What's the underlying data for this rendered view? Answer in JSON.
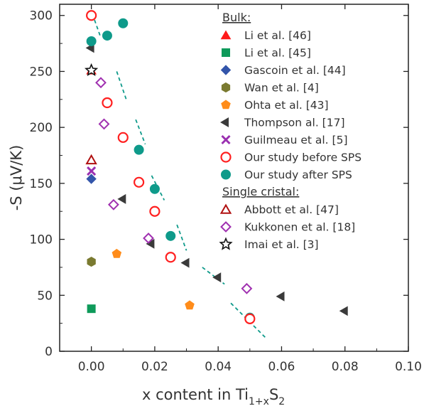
{
  "chart_data": {
    "type": "scatter",
    "xlabel": "x content in Ti",
    "xlabel_sub1": "1+x",
    "xlabel_mid": "S",
    "xlabel_sub2": "2",
    "ylabel": "-S (μV/K)",
    "xlim": [
      -0.01,
      0.1
    ],
    "ylim": [
      0,
      310
    ],
    "xticks": [
      0.0,
      0.02,
      0.04,
      0.06,
      0.08,
      0.1
    ],
    "xtick_labels": [
      "0.00",
      "0.02",
      "0.04",
      "0.06",
      "0.08",
      "0.10"
    ],
    "yticks": [
      0,
      50,
      100,
      150,
      200,
      250,
      300
    ],
    "ytick_labels": [
      "0",
      "50",
      "100",
      "150",
      "200",
      "250",
      "300"
    ],
    "grid": false,
    "legend_position": "top-right",
    "legend_groups": [
      {
        "heading": "Bulk:",
        "series_indices": [
          0,
          1,
          2,
          3,
          4,
          5,
          6,
          7,
          8
        ]
      },
      {
        "heading": "Single cristal:",
        "series_indices": [
          9,
          10,
          11
        ]
      }
    ],
    "series": [
      {
        "name": "Li et al. [46]",
        "marker": "triangle-up",
        "color": "#ff1a1a",
        "filled": true,
        "points": [
          [
            0.0,
            251
          ]
        ]
      },
      {
        "name": "Li et al. [45]",
        "marker": "square",
        "color": "#0e9a5a",
        "filled": true,
        "points": [
          [
            0.0,
            38
          ]
        ]
      },
      {
        "name": "Gascoin et al. [44]",
        "marker": "diamond",
        "color": "#3355aa",
        "filled": true,
        "points": [
          [
            0.0,
            154
          ]
        ]
      },
      {
        "name": "Wan et al. [4]",
        "marker": "hexagon",
        "color": "#7a7a30",
        "filled": true,
        "points": [
          [
            0.0,
            80
          ]
        ]
      },
      {
        "name": "Ohta et al. [43]",
        "marker": "pentagon",
        "color": "#ff8c1a",
        "filled": true,
        "points": [
          [
            0.008,
            87
          ],
          [
            0.031,
            41
          ],
          [
            0.05,
            30
          ]
        ]
      },
      {
        "name": "Thompson al. [17]",
        "marker": "triangle-left",
        "color": "#3a3a3a",
        "filled": true,
        "points": [
          [
            0.0,
            271
          ],
          [
            0.01,
            136
          ],
          [
            0.019,
            96
          ],
          [
            0.03,
            79
          ],
          [
            0.04,
            66
          ],
          [
            0.06,
            49
          ],
          [
            0.08,
            36
          ]
        ]
      },
      {
        "name": "Guilmeau et al. [5]",
        "marker": "x",
        "color": "#9a30b0",
        "filled": true,
        "points": [
          [
            0.0,
            161
          ]
        ]
      },
      {
        "name": "Our study before SPS",
        "marker": "circle",
        "color": "#ff2020",
        "filled": false,
        "points": [
          [
            0.0,
            300
          ],
          [
            0.005,
            222
          ],
          [
            0.01,
            191
          ],
          [
            0.015,
            151
          ],
          [
            0.02,
            125
          ],
          [
            0.025,
            84
          ],
          [
            0.05,
            29
          ]
        ]
      },
      {
        "name": "Our study after SPS",
        "marker": "circle",
        "color": "#0e9a8a",
        "filled": true,
        "points": [
          [
            0.0,
            277
          ],
          [
            0.005,
            282
          ],
          [
            0.01,
            293
          ],
          [
            0.015,
            180
          ],
          [
            0.02,
            145
          ],
          [
            0.025,
            103
          ],
          [
            0.05,
            30
          ]
        ]
      },
      {
        "name": "Abbott et al. [47]",
        "marker": "triangle-up",
        "color": "#b01010",
        "filled": false,
        "points": [
          [
            0.0,
            171
          ]
        ]
      },
      {
        "name": "Kukkonen et al. [18]",
        "marker": "diamond",
        "color": "#a030b0",
        "filled": false,
        "points": [
          [
            0.003,
            240
          ],
          [
            0.004,
            203
          ],
          [
            0.007,
            131
          ],
          [
            0.018,
            101
          ],
          [
            0.049,
            56
          ]
        ]
      },
      {
        "name": "Imai et al. [3]",
        "marker": "star",
        "color": "#111111",
        "filled": false,
        "points": [
          [
            0.0,
            251
          ]
        ]
      }
    ],
    "trend_segments": [
      [
        [
          0.001,
          296
        ],
        [
          0.003,
          280
        ]
      ],
      [
        [
          0.008,
          250
        ],
        [
          0.011,
          225
        ]
      ],
      [
        [
          0.014,
          207
        ],
        [
          0.017,
          185
        ]
      ],
      [
        [
          0.019,
          157
        ],
        [
          0.023,
          135
        ]
      ],
      [
        [
          0.027,
          113
        ],
        [
          0.03,
          90
        ]
      ],
      [
        [
          0.035,
          75
        ],
        [
          0.042,
          60
        ]
      ],
      [
        [
          0.044,
          43
        ],
        [
          0.055,
          12
        ]
      ]
    ],
    "trend_color": "#0e9a8a"
  }
}
